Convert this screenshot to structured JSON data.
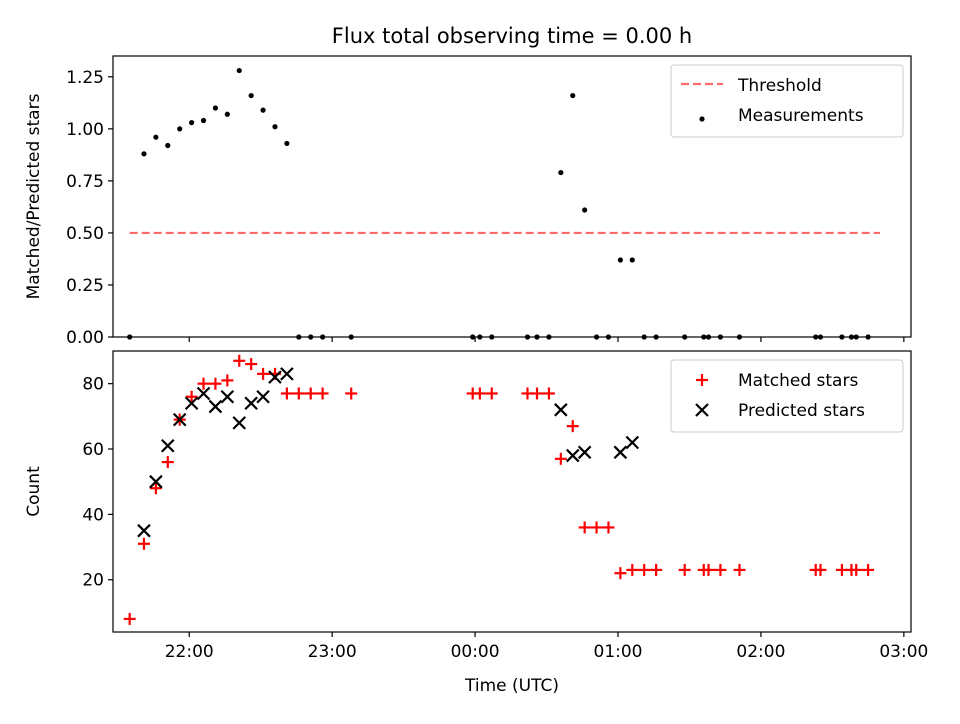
{
  "title": "Flux total observing time = 0.00 h",
  "chart_data": [
    {
      "type": "scatter",
      "panel": "top",
      "ylabel": "Matched/Predicted stars",
      "ylim": [
        0,
        1.35
      ],
      "yticks": [
        0.0,
        0.25,
        0.5,
        0.75,
        1.0,
        1.25
      ],
      "ytick_labels": [
        "0.00",
        "0.25",
        "0.50",
        "0.75",
        "1.00",
        "1.25"
      ],
      "xlim": [
        "21:28",
        "03:03"
      ],
      "xticks": [
        "22:00",
        "23:00",
        "00:00",
        "01:00",
        "02:00",
        "03:00"
      ],
      "legend_position": "top-right",
      "threshold": {
        "name": "Threshold",
        "color": "#ff6a6a",
        "style": "dashed",
        "y": 0.5,
        "x_range": [
          "21:35",
          "02:50"
        ]
      },
      "series": [
        {
          "name": "Measurements",
          "color": "#000000",
          "marker": "dot",
          "x": [
            "21:35",
            "21:41",
            "21:46",
            "21:51",
            "21:56",
            "22:01",
            "22:06",
            "22:11",
            "22:16",
            "22:21",
            "22:26",
            "22:31",
            "22:36",
            "22:41",
            "22:46",
            "22:51",
            "22:56",
            "23:08",
            "23:59",
            "00:02",
            "00:07",
            "00:22",
            "00:26",
            "00:31",
            "00:36",
            "00:41",
            "00:46",
            "00:51",
            "00:56",
            "01:01",
            "01:06",
            "01:11",
            "01:16",
            "01:28",
            "01:36",
            "01:38",
            "01:43",
            "01:51",
            "02:23",
            "02:25",
            "02:34",
            "02:38",
            "02:40",
            "02:45"
          ],
          "y": [
            0.0,
            0.88,
            0.96,
            0.92,
            1.0,
            1.03,
            1.04,
            1.1,
            1.07,
            1.28,
            1.16,
            1.09,
            1.01,
            0.93,
            0.0,
            0.0,
            0.0,
            0.0,
            0.0,
            0.0,
            0.0,
            0.0,
            0.0,
            0.0,
            0.79,
            1.16,
            0.61,
            0.0,
            0.0,
            0.37,
            0.37,
            0.0,
            0.0,
            0.0,
            0.0,
            0.0,
            0.0,
            0.0,
            0.0,
            0.0,
            0.0,
            0.0,
            0.0,
            0.0
          ]
        }
      ]
    },
    {
      "type": "scatter",
      "panel": "bottom",
      "xlabel": "Time (UTC)",
      "ylabel": "Count",
      "ylim": [
        4,
        90
      ],
      "yticks": [
        20,
        40,
        60,
        80
      ],
      "ytick_labels": [
        "20",
        "40",
        "60",
        "80"
      ],
      "xlim": [
        "21:28",
        "03:03"
      ],
      "xticks": [
        "22:00",
        "23:00",
        "00:00",
        "01:00",
        "02:00",
        "03:00"
      ],
      "xtick_labels": [
        "22:00",
        "23:00",
        "00:00",
        "01:00",
        "02:00",
        "03:00"
      ],
      "legend_position": "top-right",
      "series": [
        {
          "name": "Matched stars",
          "color": "#ff0000",
          "marker": "plus",
          "x": [
            "21:35",
            "21:41",
            "21:46",
            "21:51",
            "21:56",
            "22:01",
            "22:06",
            "22:11",
            "22:16",
            "22:21",
            "22:26",
            "22:31",
            "22:36",
            "22:41",
            "22:46",
            "22:51",
            "22:56",
            "23:08",
            "23:59",
            "00:02",
            "00:07",
            "00:22",
            "00:26",
            "00:31",
            "00:36",
            "00:41",
            "00:46",
            "00:51",
            "00:56",
            "01:01",
            "01:06",
            "01:11",
            "01:16",
            "01:28",
            "01:36",
            "01:38",
            "01:43",
            "01:51",
            "02:23",
            "02:25",
            "02:34",
            "02:38",
            "02:40",
            "02:45"
          ],
          "y": [
            8,
            31,
            48,
            56,
            69,
            76,
            80,
            80,
            81,
            87,
            86,
            83,
            83,
            77,
            77,
            77,
            77,
            77,
            77,
            77,
            77,
            77,
            77,
            77,
            57,
            67,
            36,
            36,
            36,
            22,
            23,
            23,
            23,
            23,
            23,
            23,
            23,
            23,
            23,
            23,
            23,
            23,
            23,
            23
          ]
        },
        {
          "name": "Predicted stars",
          "color": "#000000",
          "marker": "x",
          "x": [
            "21:41",
            "21:46",
            "21:51",
            "21:56",
            "22:01",
            "22:06",
            "22:11",
            "22:16",
            "22:21",
            "22:26",
            "22:31",
            "22:36",
            "22:41",
            "00:36",
            "00:41",
            "00:46",
            "01:01",
            "01:06"
          ],
          "y": [
            35,
            50,
            61,
            69,
            74,
            77,
            73,
            76,
            68,
            74,
            76,
            82,
            83,
            72,
            58,
            59,
            59,
            62
          ]
        }
      ]
    }
  ]
}
